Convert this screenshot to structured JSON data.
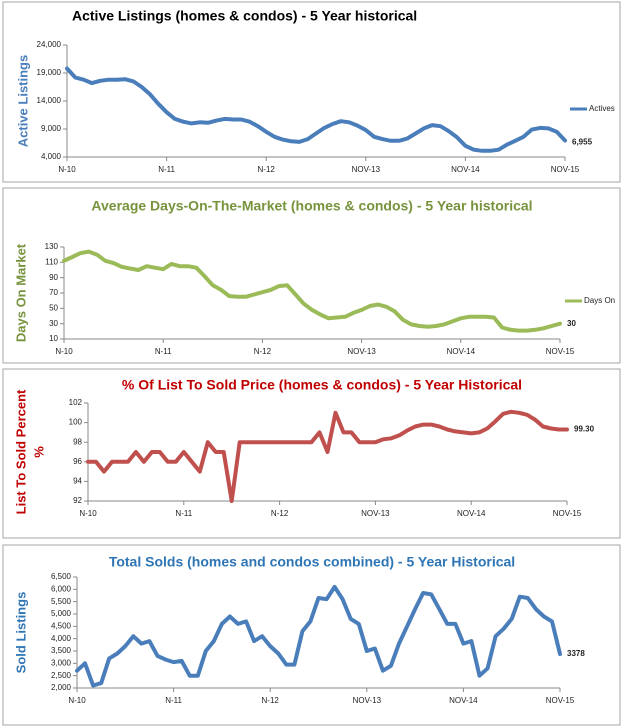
{
  "chart_data": [
    {
      "type": "line",
      "title": "Active Listings (homes & condos) - 5 Year historical",
      "title_color": "#000000",
      "ylabel": "Active Listings",
      "ylabel_color": "#4a7ebb",
      "categories": [
        "N-10",
        null,
        null,
        null,
        null,
        null,
        null,
        null,
        null,
        null,
        null,
        null,
        "N-11",
        null,
        null,
        null,
        null,
        null,
        null,
        null,
        null,
        null,
        null,
        null,
        "N-12",
        null,
        null,
        null,
        null,
        null,
        null,
        null,
        null,
        null,
        null,
        null,
        "NOV-13",
        null,
        null,
        null,
        null,
        null,
        null,
        null,
        null,
        null,
        null,
        null,
        "NOV-14",
        null,
        null,
        null,
        null,
        null,
        null,
        null,
        null,
        null,
        null,
        null,
        "NOV-15"
      ],
      "series": [
        {
          "name": "Actives",
          "color": "#4a7ebb",
          "values": [
            19800,
            18200,
            17800,
            17200,
            17600,
            17800,
            17800,
            17900,
            17500,
            16500,
            15200,
            13500,
            12000,
            10800,
            10300,
            10000,
            10200,
            10100,
            10500,
            10800,
            10700,
            10700,
            10300,
            9500,
            8500,
            7600,
            7100,
            6800,
            6700,
            7200,
            8200,
            9200,
            9900,
            10400,
            10200,
            9600,
            8800,
            7600,
            7200,
            6900,
            6900,
            7300,
            8200,
            9100,
            9700,
            9500,
            8600,
            7500,
            6000,
            5300,
            5100,
            5100,
            5300,
            6200,
            6900,
            7600,
            8900,
            9200,
            9100,
            8500,
            6955
          ],
          "value_labels": [
            null,
            null,
            null,
            null,
            null,
            null,
            null,
            null,
            null,
            null,
            null,
            null,
            null,
            null,
            null,
            null,
            null,
            null,
            null,
            null,
            null,
            null,
            null,
            null,
            null,
            null,
            null,
            null,
            null,
            null,
            null,
            null,
            null,
            null,
            null,
            null,
            null,
            null,
            null,
            null,
            null,
            null,
            null,
            null,
            null,
            null,
            null,
            null,
            null,
            null,
            null,
            null,
            null,
            null,
            null,
            null,
            null,
            null,
            null,
            null,
            "6,955"
          ]
        }
      ],
      "ylim": [
        4000,
        24000
      ],
      "yticks": [
        {
          "value": 4000,
          "label": "4,000"
        },
        {
          "value": 9000,
          "label": "9,000"
        },
        {
          "value": 14000,
          "label": "14,000"
        },
        {
          "value": 19000,
          "label": "19,000"
        },
        {
          "value": 24000,
          "label": "24,000"
        }
      ],
      "grid": false
    },
    {
      "type": "line",
      "title": "Average Days-On-The-Market (homes & condos) - 5 Year historical",
      "title_color": "#77933c",
      "ylabel": "Days On Market",
      "ylabel_color": "#77933c",
      "categories": [
        "N-10",
        null,
        null,
        null,
        null,
        null,
        null,
        null,
        null,
        null,
        null,
        null,
        "N-11",
        null,
        null,
        null,
        null,
        null,
        null,
        null,
        null,
        null,
        null,
        null,
        "N-12",
        null,
        null,
        null,
        null,
        null,
        null,
        null,
        null,
        null,
        null,
        null,
        "NOV-13",
        null,
        null,
        null,
        null,
        null,
        null,
        null,
        null,
        null,
        null,
        null,
        "NOV-14",
        null,
        null,
        null,
        null,
        null,
        null,
        null,
        null,
        null,
        null,
        null,
        "NOV-15"
      ],
      "series": [
        {
          "name": "Days On",
          "color": "#9bbb59",
          "values": [
            112,
            117,
            122,
            124,
            120,
            112,
            109,
            104,
            102,
            100,
            105,
            103,
            101,
            108,
            105,
            105,
            103,
            92,
            80,
            74,
            66,
            65,
            65,
            68,
            71,
            74,
            79,
            80,
            68,
            56,
            48,
            42,
            37,
            38,
            39,
            44,
            48,
            53,
            55,
            52,
            46,
            35,
            29,
            27,
            26,
            27,
            29,
            33,
            37,
            39,
            39,
            39,
            38,
            25,
            22,
            21,
            21,
            22,
            24,
            27,
            30
          ]
        }
      ],
      "ylim": [
        10,
        130
      ],
      "yticks": [
        10,
        30,
        50,
        70,
        90,
        110,
        130
      ],
      "grid": false
    },
    {
      "type": "line",
      "title": "% Of List To Sold Price (homes & condos) - 5 Year Historical",
      "title_color": "#c00000",
      "ylabel": "List To Sold Percent",
      "ylabel_unit": "%",
      "ylabel_color": "#c00000",
      "categories": [
        "N-10",
        null,
        null,
        null,
        null,
        null,
        null,
        null,
        null,
        null,
        null,
        null,
        "N-11",
        null,
        null,
        null,
        null,
        null,
        null,
        null,
        null,
        null,
        null,
        null,
        "N-12",
        null,
        null,
        null,
        null,
        null,
        null,
        null,
        null,
        null,
        null,
        null,
        "NOV-13",
        null,
        null,
        null,
        null,
        null,
        null,
        null,
        null,
        null,
        null,
        null,
        "NOV-14",
        null,
        null,
        null,
        null,
        null,
        null,
        null,
        null,
        null,
        null,
        null,
        "NOV-15"
      ],
      "series": [
        {
          "color": "#c0504d",
          "values": [
            96,
            96,
            95,
            96,
            96,
            96,
            97,
            96,
            97,
            97,
            96,
            96,
            97,
            96,
            95,
            98,
            97,
            97,
            92,
            98,
            98,
            98,
            98,
            98,
            98,
            98,
            98,
            98,
            98,
            99,
            97,
            101,
            99,
            99,
            98,
            98,
            98,
            98.3,
            98.4,
            98.7,
            99.2,
            99.6,
            99.8,
            99.8,
            99.6,
            99.3,
            99.1,
            99.0,
            98.9,
            99.0,
            99.4,
            100.1,
            100.9,
            101.1,
            101.0,
            100.8,
            100.3,
            99.6,
            99.4,
            99.3,
            99.3
          ],
          "value_labels": [
            null,
            null,
            null,
            null,
            null,
            null,
            null,
            null,
            null,
            null,
            null,
            null,
            null,
            null,
            null,
            null,
            null,
            null,
            null,
            null,
            null,
            null,
            null,
            null,
            null,
            null,
            null,
            null,
            null,
            null,
            null,
            null,
            null,
            null,
            null,
            null,
            null,
            null,
            null,
            null,
            null,
            null,
            null,
            null,
            null,
            null,
            null,
            null,
            null,
            null,
            null,
            null,
            null,
            null,
            null,
            null,
            null,
            null,
            null,
            null,
            "99.30"
          ]
        }
      ],
      "ylim": [
        92,
        102
      ],
      "yticks": [
        92,
        94,
        96,
        98,
        100,
        102
      ],
      "grid": false
    },
    {
      "type": "line",
      "title": "Total Solds (homes and condos combined) - 5 Year Historical",
      "title_color": "#2e75b6",
      "ylabel": "Sold Listings",
      "ylabel_color": "#2e75b6",
      "categories": [
        "N-10",
        null,
        null,
        null,
        null,
        null,
        null,
        null,
        null,
        null,
        null,
        null,
        "N-11",
        null,
        null,
        null,
        null,
        null,
        null,
        null,
        null,
        null,
        null,
        null,
        "N-12",
        null,
        null,
        null,
        null,
        null,
        null,
        null,
        null,
        null,
        null,
        null,
        "NOV-13",
        null,
        null,
        null,
        null,
        null,
        null,
        null,
        null,
        null,
        null,
        null,
        "NOV-14",
        null,
        null,
        null,
        null,
        null,
        null,
        null,
        null,
        null,
        null,
        null,
        "NOV-15"
      ],
      "series": [
        {
          "color": "#4a7ebb",
          "values": [
            2700,
            3000,
            2100,
            2200,
            3200,
            3400,
            3700,
            4100,
            3800,
            3900,
            3300,
            3150,
            3050,
            3100,
            2500,
            2500,
            3500,
            3900,
            4600,
            4900,
            4600,
            4700,
            3900,
            4100,
            3700,
            3400,
            2950,
            2950,
            4300,
            4700,
            5650,
            5600,
            6100,
            5600,
            4800,
            4600,
            3500,
            3600,
            2700,
            2900,
            3800,
            4500,
            5200,
            5850,
            5800,
            5200,
            4600,
            4600,
            3800,
            3900,
            2500,
            2800,
            4100,
            4400,
            4800,
            5700,
            5650,
            5200,
            4900,
            4700,
            3378
          ]
        }
      ],
      "ylim": [
        2000,
        6500
      ],
      "yticks": [
        {
          "value": 2000,
          "label": "2,000"
        },
        {
          "value": 2500,
          "label": "2,500"
        },
        {
          "value": 3000,
          "label": "3,000"
        },
        {
          "value": 3500,
          "label": "3,500"
        },
        {
          "value": 4000,
          "label": "4,000"
        },
        {
          "value": 4500,
          "label": "4,500"
        },
        {
          "value": 5000,
          "label": "5,000"
        },
        {
          "value": 5500,
          "label": "5,500"
        },
        {
          "value": 6000,
          "label": "6,000"
        },
        {
          "value": 6500,
          "label": "6,500"
        }
      ],
      "grid": false
    }
  ]
}
